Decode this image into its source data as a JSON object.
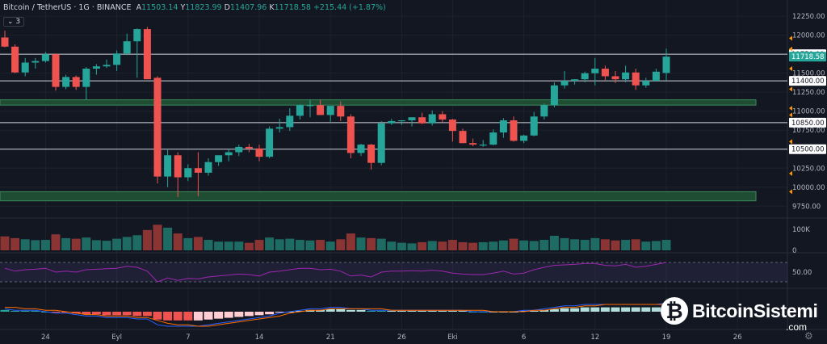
{
  "header": {
    "symbol": "Bitcoin / TetherUS · 1G · BINANCE",
    "o_label": "A",
    "o": "11503.14",
    "h_label": "Y",
    "h": "11823.99",
    "l_label": "D",
    "l": "11407.96",
    "c_label": "K",
    "c": "11718.58",
    "change": "+215.44 (+1.87%)"
  },
  "indicators_toggle": {
    "icon": "chevron-down-icon",
    "count": "3"
  },
  "logo": {
    "symbol": "₿",
    "name": "BitcoinSistemi",
    "domain": ".com"
  },
  "settings_icon": "gear-icon",
  "colors": {
    "up": "#26a69a",
    "down": "#ef5350",
    "zone": "#1f4d33",
    "zone_border": "#3b8a5a",
    "line": "#d1d4dc",
    "rsi": "#9c27b0",
    "background": "#131722"
  },
  "chart_data": {
    "type": "candlestick",
    "x_ticks": [
      {
        "i": 4,
        "label": "24"
      },
      {
        "i": 11,
        "label": "Eyl"
      },
      {
        "i": 18,
        "label": "7"
      },
      {
        "i": 25,
        "label": "14"
      },
      {
        "i": 32,
        "label": "21"
      },
      {
        "i": 39,
        "label": "26"
      },
      {
        "i": 44,
        "label": "Eki"
      },
      {
        "i": 51,
        "label": "6"
      },
      {
        "i": 58,
        "label": "12"
      },
      {
        "i": 65,
        "label": "19"
      },
      {
        "i": 72,
        "label": "26"
      }
    ],
    "y_ticks": [
      12250,
      12000,
      11500,
      11250,
      11000,
      10750,
      10250,
      10000,
      9750
    ],
    "ylim": [
      9700,
      12400
    ],
    "price_levels": [
      "11750.00",
      "11400.00",
      "10850.00",
      "10500.00"
    ],
    "current_price": "11718.58",
    "zones": [
      [
        11080,
        11150
      ],
      [
        9820,
        9940
      ]
    ],
    "volume_tick": "100K",
    "volume_tick_zero": "0",
    "rsi_tick": "50.00",
    "candles": [
      [
        11970,
        12060,
        11840,
        11850
      ],
      [
        11850,
        11880,
        11500,
        11510
      ],
      [
        11510,
        11700,
        11460,
        11640
      ],
      [
        11640,
        11700,
        11560,
        11660
      ],
      [
        11660,
        11780,
        11640,
        11750
      ],
      [
        11750,
        11760,
        11270,
        11320
      ],
      [
        11320,
        11480,
        11290,
        11450
      ],
      [
        11450,
        11470,
        11280,
        11320
      ],
      [
        11320,
        11580,
        11150,
        11560
      ],
      [
        11560,
        11620,
        11480,
        11590
      ],
      [
        11590,
        11680,
        11570,
        11610
      ],
      [
        11610,
        11800,
        11530,
        11760
      ],
      [
        11760,
        12020,
        11740,
        11920
      ],
      [
        11920,
        12090,
        11440,
        12080
      ],
      [
        12080,
        12110,
        11440,
        11420
      ],
      [
        11440,
        11460,
        10050,
        10140
      ],
      [
        10140,
        10500,
        10000,
        10420
      ],
      [
        10420,
        10460,
        9870,
        10130
      ],
      [
        10130,
        10300,
        10080,
        10250
      ],
      [
        10250,
        10460,
        9880,
        10190
      ],
      [
        10190,
        10380,
        10150,
        10330
      ],
      [
        10330,
        10420,
        10280,
        10420
      ],
      [
        10420,
        10500,
        10340,
        10460
      ],
      [
        10460,
        10560,
        10410,
        10530
      ],
      [
        10530,
        10570,
        10460,
        10510
      ],
      [
        10510,
        10560,
        10340,
        10400
      ],
      [
        10400,
        10800,
        10380,
        10770
      ],
      [
        10770,
        10900,
        10720,
        10790
      ],
      [
        10790,
        11040,
        10740,
        10940
      ],
      [
        10940,
        11090,
        10890,
        11080
      ],
      [
        11080,
        11150,
        10920,
        11080
      ],
      [
        11080,
        11150,
        10950,
        10950
      ],
      [
        10950,
        11050,
        10860,
        11070
      ],
      [
        11070,
        11130,
        10870,
        10930
      ],
      [
        10930,
        10960,
        10380,
        10450
      ],
      [
        10450,
        10570,
        10410,
        10560
      ],
      [
        10560,
        10570,
        10230,
        10320
      ],
      [
        10320,
        10870,
        10290,
        10840
      ],
      [
        10840,
        10900,
        10820,
        10870
      ],
      [
        10870,
        10880,
        10820,
        10880
      ],
      [
        10880,
        10920,
        10800,
        10920
      ],
      [
        10920,
        10980,
        10830,
        10840
      ],
      [
        10840,
        11010,
        10810,
        10960
      ],
      [
        10960,
        11000,
        10850,
        10890
      ],
      [
        10890,
        10900,
        10600,
        10740
      ],
      [
        10740,
        10770,
        10580,
        10580
      ],
      [
        10580,
        10640,
        10540,
        10560
      ],
      [
        10560,
        10620,
        10530,
        10560
      ],
      [
        10560,
        10760,
        10550,
        10720
      ],
      [
        10720,
        10910,
        10650,
        10880
      ],
      [
        10880,
        10930,
        10600,
        10610
      ],
      [
        10610,
        10690,
        10580,
        10680
      ],
      [
        10680,
        10990,
        10670,
        10930
      ],
      [
        10930,
        11100,
        10890,
        11080
      ],
      [
        11080,
        11380,
        11050,
        11340
      ],
      [
        11340,
        11530,
        11300,
        11400
      ],
      [
        11400,
        11420,
        11350,
        11420
      ],
      [
        11420,
        11520,
        11380,
        11500
      ],
      [
        11500,
        11700,
        11340,
        11560
      ],
      [
        11560,
        11600,
        11410,
        11460
      ],
      [
        11460,
        11530,
        11370,
        11420
      ],
      [
        11420,
        11600,
        11380,
        11510
      ],
      [
        11510,
        11560,
        11280,
        11340
      ],
      [
        11340,
        11440,
        11310,
        11400
      ],
      [
        11400,
        11560,
        11390,
        11520
      ],
      [
        11503.14,
        11823.99,
        11407.96,
        11718.58
      ]
    ],
    "volume": [
      48,
      42,
      38,
      35,
      36,
      55,
      42,
      40,
      44,
      35,
      33,
      40,
      46,
      52,
      70,
      88,
      78,
      58,
      42,
      46,
      36,
      30,
      30,
      30,
      26,
      36,
      44,
      38,
      40,
      36,
      34,
      36,
      30,
      38,
      58,
      44,
      42,
      40,
      30,
      26,
      24,
      28,
      32,
      30,
      36,
      28,
      26,
      28,
      30,
      34,
      40,
      34,
      32,
      36,
      50,
      42,
      38,
      36,
      42,
      38,
      34,
      36,
      38,
      30,
      32,
      36
    ],
    "rsi": [
      58,
      52,
      55,
      56,
      58,
      50,
      52,
      50,
      55,
      56,
      57,
      58,
      62,
      60,
      52,
      30,
      38,
      33,
      37,
      36,
      40,
      42,
      44,
      46,
      45,
      42,
      50,
      52,
      55,
      58,
      58,
      55,
      56,
      52,
      42,
      44,
      40,
      50,
      52,
      52,
      53,
      52,
      54,
      52,
      48,
      46,
      45,
      45,
      48,
      52,
      46,
      48,
      55,
      60,
      64,
      65,
      66,
      68,
      68,
      64,
      63,
      66,
      60,
      62,
      66,
      70
    ],
    "macd": [
      2,
      1,
      1,
      1,
      0,
      -1,
      -1,
      -2,
      -3,
      -3,
      -4,
      -4,
      -4,
      -5,
      -5,
      -9,
      -10,
      -10,
      -10,
      -10,
      -9,
      -8,
      -7,
      -6,
      -5,
      -4,
      -3,
      -1,
      0,
      1,
      2,
      2,
      3,
      3,
      2,
      2,
      1,
      1,
      1,
      1,
      1,
      1,
      1,
      1,
      1,
      1,
      0,
      0,
      0,
      0,
      0,
      1,
      1,
      2,
      3,
      4,
      4,
      5,
      5,
      5,
      5,
      5,
      5,
      5,
      5,
      6
    ],
    "signal": [
      3,
      3,
      2,
      2,
      1,
      1,
      0,
      -1,
      -2,
      -2,
      -3,
      -3,
      -3,
      -4,
      -4,
      -6,
      -8,
      -9,
      -9,
      -10,
      -10,
      -9,
      -8,
      -7,
      -6,
      -5,
      -4,
      -3,
      -1,
      0,
      1,
      1,
      2,
      2,
      2,
      2,
      2,
      2,
      1,
      1,
      1,
      1,
      1,
      1,
      1,
      1,
      1,
      1,
      0,
      0,
      0,
      0,
      1,
      1,
      2,
      3,
      3,
      4,
      4,
      5,
      5,
      5,
      5,
      5,
      5,
      5
    ]
  }
}
